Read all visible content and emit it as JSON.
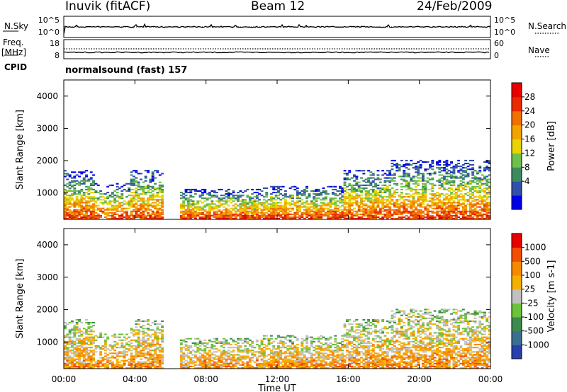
{
  "header": {
    "station": "Inuvik  (fitACF)",
    "beam": "Beam 12",
    "date": "24/Feb/2009"
  },
  "side_labels": {
    "nsky": "N.Sky",
    "freq": "Freq.",
    "freq_unit": "[MHz]",
    "cpid": "CPID",
    "nsearch": "N.Search",
    "nave": "Nave"
  },
  "cpid_text": "normalsound (fast) 157",
  "top_panel": {
    "nsky_ticks": [
      "10^5",
      "10^0"
    ],
    "nsearch_ticks": [
      "10^5",
      "10^0"
    ],
    "freq_ticks": [
      "18",
      "8"
    ],
    "nave_ticks": [
      "60",
      "0"
    ]
  },
  "chart_data": [
    {
      "type": "heatmap",
      "name": "power-panel",
      "ylabel": "Slant Range [km]",
      "xlabel": "",
      "colorbar_label": "Power [dB]",
      "colorbar_ticks": [
        "28",
        "24",
        "20",
        "16",
        "12",
        "8",
        "4"
      ],
      "colorbar_colors": [
        "#0000e8",
        "#2f4fa8",
        "#3e8a5e",
        "#6dc04a",
        "#e8d400",
        "#f2a300",
        "#f07000",
        "#e82b00",
        "#e80000"
      ],
      "y_ticks": [
        "1000",
        "2000",
        "3000",
        "4000"
      ],
      "ylim": [
        180,
        4500
      ],
      "xlim": [
        0,
        24
      ]
    },
    {
      "type": "heatmap",
      "name": "velocity-panel",
      "ylabel": "Slant Range [km]",
      "xlabel": "Time UT",
      "colorbar_label": "Velocity [m s-1]",
      "colorbar_ticks": [
        "1000",
        "500",
        "100",
        "25",
        "-25",
        "-100",
        "-500",
        "-1000"
      ],
      "colorbar_colors": [
        "#2a3fae",
        "#3a6f90",
        "#3c8a4e",
        "#6cc23a",
        "#c0c0c0",
        "#f4b000",
        "#f58a00",
        "#f24d00",
        "#e80000"
      ],
      "y_ticks": [
        "1000",
        "2000",
        "3000",
        "4000"
      ],
      "x_ticks": [
        "00:00",
        "04:00",
        "08:00",
        "12:00",
        "16:00",
        "20:00",
        "00:00"
      ],
      "ylim": [
        180,
        4500
      ],
      "xlim": [
        0,
        24
      ]
    }
  ]
}
